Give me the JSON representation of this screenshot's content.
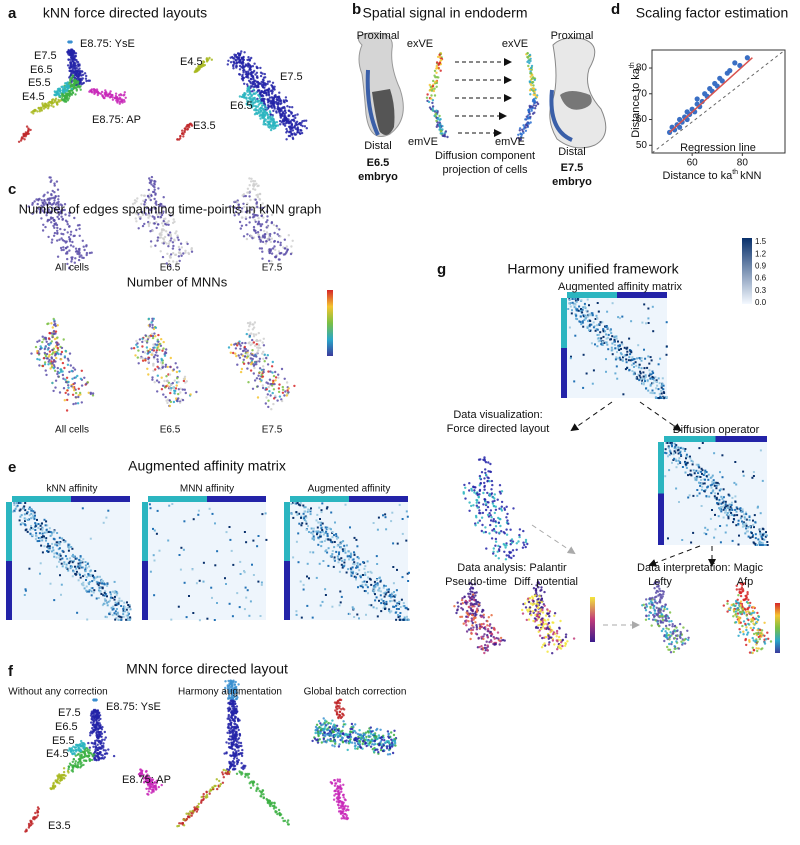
{
  "panel_a": {
    "letter": "a",
    "title": "kNN force directed layouts",
    "labels_left": [
      "E8.75: YsE",
      "E7.5",
      "E6.5",
      "E5.5",
      "E4.5",
      "E8.75: AP"
    ],
    "labels_right": [
      "E4.5",
      "E3.5",
      "E7.5",
      "E6.5"
    ]
  },
  "panel_b": {
    "letter": "b",
    "title": "Spatial signal in endoderm",
    "left_embryo": {
      "top": "Proximal",
      "bottom": "Distal",
      "stage": "E6.5",
      "caption": "embryo"
    },
    "projection": {
      "top_left": "exVE",
      "bottom_left": "emVE",
      "top_right": "exVE",
      "bottom_right": "emVE",
      "caption": [
        "Diffusion component",
        "projection of cells"
      ]
    },
    "right_embryo": {
      "top": "Proximal",
      "bottom": "Distal",
      "stage": "E7.5",
      "caption": "embryo"
    }
  },
  "panel_c": {
    "letter": "c",
    "title_top": "Number of edges spanning time-points in kNN graph",
    "labels_top": [
      "All cells",
      "E6.5",
      "E7.5"
    ],
    "title_bottom": "Number of MNNs",
    "labels_bottom": [
      "All cells",
      "E6.5",
      "E7.5"
    ]
  },
  "panel_d": {
    "letter": "d",
    "title": "Scaling factor estimation",
    "type": "scatter",
    "y_label": {
      "text": "Distance to ka",
      "sup": "th"
    },
    "x_label": {
      "text": "Distance to ka",
      "sup": "th",
      "tail": "kNN"
    },
    "annotation": "Regression line",
    "xlim": [
      44,
      97
    ],
    "ylim": [
      47,
      87
    ],
    "xticks": [
      60,
      80
    ],
    "yticks": [
      50,
      60,
      70,
      80
    ],
    "x": [
      51,
      52,
      53,
      54,
      55,
      55,
      56,
      57,
      58,
      58,
      59,
      60,
      61,
      62,
      62,
      63,
      64,
      65,
      66,
      67,
      68,
      69,
      70,
      71,
      72,
      74,
      75,
      77,
      79,
      82
    ],
    "y": [
      55,
      57,
      56,
      58,
      57,
      60,
      59,
      61,
      60,
      63,
      62,
      64,
      63,
      66,
      68,
      65,
      67,
      70,
      69,
      72,
      71,
      74,
      73,
      76,
      75,
      78,
      79,
      82,
      81,
      84
    ],
    "color": "#3a6fc4",
    "regression": {
      "x": [
        51,
        84
      ],
      "y": [
        55,
        84
      ],
      "color": "#d9534f"
    }
  },
  "panel_e": {
    "letter": "e",
    "title": "Augmented affinity matrix",
    "labels": [
      "kNN affinity",
      "MNN affinity",
      "Augmented affinity"
    ]
  },
  "panel_f": {
    "letter": "f",
    "title": "MNN force directed layout",
    "subtitles": [
      "Without any correction",
      "Harmony augmentation",
      "Global batch correction"
    ],
    "labels": [
      "E8.75: YsE",
      "E7.5",
      "E6.5",
      "E5.5",
      "E4.5",
      "E8.75: AP",
      "E3.5"
    ]
  },
  "panel_g": {
    "letter": "g",
    "title": "Harmony unified framework",
    "matrix_title": "Augmented affinity matrix",
    "colorbar_labels": [
      "1.5",
      "1.2",
      "0.9",
      "0.6",
      "0.3",
      "0.0"
    ],
    "visualization": [
      "Data visualization:",
      "Force directed layout"
    ],
    "diffusion": "Diffusion operator",
    "analysis": {
      "title": "Data analysis: Palantir",
      "labels": [
        "Pseudo-time",
        "Diff. potential"
      ]
    },
    "interpretation": {
      "title": "Data interpretation: Magic",
      "labels": [
        "Lefty",
        "Afp"
      ]
    }
  }
}
